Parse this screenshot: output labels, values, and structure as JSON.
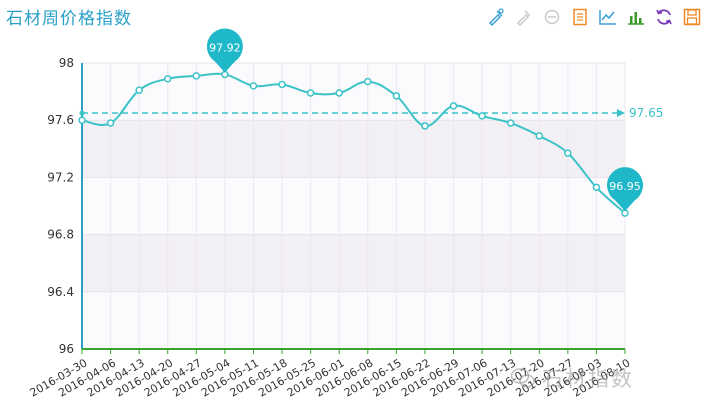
{
  "header": {
    "title": "石材周价格指数"
  },
  "toolbar": {
    "icons": [
      "data-zoom-icon",
      "zoom-reset-icon",
      "refresh-icon",
      "data-view-icon",
      "line-chart-icon",
      "bar-chart-icon",
      "restore-icon",
      "save-image-icon"
    ]
  },
  "watermark": {
    "text": "石材指数"
  },
  "chart_data": {
    "type": "line",
    "categories": [
      "2016-03-30",
      "2016-04-06",
      "2016-04-13",
      "2016-04-20",
      "2016-04-27",
      "2016-05-04",
      "2016-05-11",
      "2016-05-18",
      "2016-05-25",
      "2016-06-01",
      "2016-06-08",
      "2016-06-15",
      "2016-06-22",
      "2016-06-29",
      "2016-07-06",
      "2016-07-13",
      "2016-07-20",
      "2016-07-27",
      "2016-08-03",
      "2016-08-10"
    ],
    "series": [
      {
        "values": [
          97.6,
          97.58,
          97.81,
          97.89,
          97.91,
          97.92,
          97.84,
          97.85,
          97.79,
          97.79,
          97.87,
          97.77,
          97.56,
          97.7,
          97.63,
          97.58,
          97.49,
          97.37,
          97.13,
          96.95
        ]
      }
    ],
    "ylim": [
      96,
      98
    ],
    "yticks": [
      96,
      96.4,
      96.8,
      97.2,
      97.6,
      98
    ],
    "ytick_labels": [
      "96",
      "96.4",
      "96.8",
      "97.2",
      "97.6",
      "98"
    ],
    "average": 97.65,
    "average_label": "97.65",
    "max_label": "97.92",
    "min_label": "96.95",
    "grid": true,
    "colors": {
      "line": "#3cc3c8",
      "marker": "#1fb8c8",
      "axis": "#2aa0c8",
      "xaxis": "#3aa32f"
    }
  }
}
